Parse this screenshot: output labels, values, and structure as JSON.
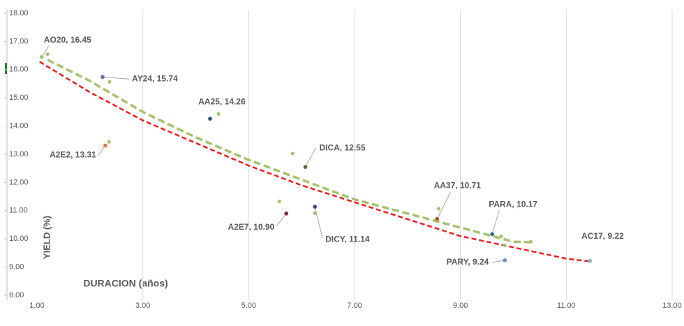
{
  "chart_data": {
    "type": "scatter",
    "x_label": "DURACION (años)",
    "y_label": "YIELD (%)",
    "xlim": [
      1,
      13
    ],
    "ylim": [
      8,
      18
    ],
    "xticks": [
      {
        "value": 1,
        "label": "1.00"
      },
      {
        "value": 3,
        "label": "3.00"
      },
      {
        "value": 5,
        "label": "5.00"
      },
      {
        "value": 7,
        "label": "7.00"
      },
      {
        "value": 9,
        "label": "9.00"
      },
      {
        "value": 11,
        "label": "11.00"
      },
      {
        "value": 13,
        "label": "13.00"
      }
    ],
    "yticks": [
      {
        "value": 8,
        "label": "8.00"
      },
      {
        "value": 9,
        "label": "9.00"
      },
      {
        "value": 10,
        "label": "10.00"
      },
      {
        "value": 11,
        "label": "11.00"
      },
      {
        "value": 12,
        "label": "12.00"
      },
      {
        "value": 13,
        "label": "13.00"
      },
      {
        "value": 14,
        "label": "14.00"
      },
      {
        "value": 15,
        "label": "15.00"
      },
      {
        "value": 16,
        "label": "16.00"
      },
      {
        "value": 17,
        "label": "17.00"
      },
      {
        "value": 18,
        "label": "18.00"
      }
    ],
    "grid": true,
    "points": [
      {
        "label": "AO20, 16.45",
        "x": 1.09,
        "y": 16.45,
        "color": "#a5c26b"
      },
      {
        "label": "AY24, 15.74",
        "x": 2.24,
        "y": 15.74,
        "color": "#7060a8"
      },
      {
        "label": "AA25, 14.26",
        "x": 4.27,
        "y": 14.26,
        "color": "#2f4f7f"
      },
      {
        "label": "A2E2, 13.31",
        "x": 2.29,
        "y": 13.31,
        "color": "#e07b39"
      },
      {
        "label": "DICA, 12.55",
        "x": 6.07,
        "y": 12.55,
        "color": "#6b5b3a"
      },
      {
        "label": "AA37, 10.71",
        "x": 8.56,
        "y": 10.71,
        "color": "#b5562c"
      },
      {
        "label": "PARA, 10.17",
        "x": 9.6,
        "y": 10.17,
        "color": "#2a6f7f"
      },
      {
        "label": "AC17, 9.22",
        "x": 11.45,
        "y": 9.22,
        "color": "#8fb0d0"
      },
      {
        "label": "PARY, 9.24",
        "x": 9.84,
        "y": 9.24,
        "color": "#6f8fbf"
      },
      {
        "label": "A2E7, 10.90",
        "x": 5.71,
        "y": 10.9,
        "color": "#7a2a3a"
      },
      {
        "label": "DICY, 11.14",
        "x": 6.25,
        "y": 11.14,
        "color": "#3f3f7f"
      }
    ],
    "extra_points": {
      "color": "#a5c26b",
      "x": [
        1.2,
        2.37,
        2.36,
        4.43,
        5.83,
        5.58,
        6.25,
        8.59,
        9.77,
        9.84,
        10.33
      ],
      "y": [
        16.55,
        15.57,
        13.44,
        14.43,
        13.03,
        11.33,
        10.91,
        11.07,
        10.09,
        9.77,
        9.9
      ]
    },
    "trendlines": [
      {
        "color": "#e8201f",
        "x": [
          1.05,
          2,
          3,
          4,
          5,
          6,
          7,
          8,
          9,
          10,
          11,
          11.45
        ],
        "y": [
          16.28,
          15.2,
          14.2,
          13.4,
          12.6,
          11.9,
          11.3,
          10.7,
          10.1,
          9.7,
          9.3,
          9.2
        ]
      },
      {
        "color": "#a5c26b",
        "x": [
          1.2,
          2,
          3,
          4,
          5,
          6,
          7,
          8,
          9,
          10,
          10.4
        ],
        "y": [
          16.35,
          15.6,
          14.5,
          13.6,
          12.8,
          12.1,
          11.4,
          10.9,
          10.4,
          9.9,
          9.88
        ]
      }
    ]
  }
}
